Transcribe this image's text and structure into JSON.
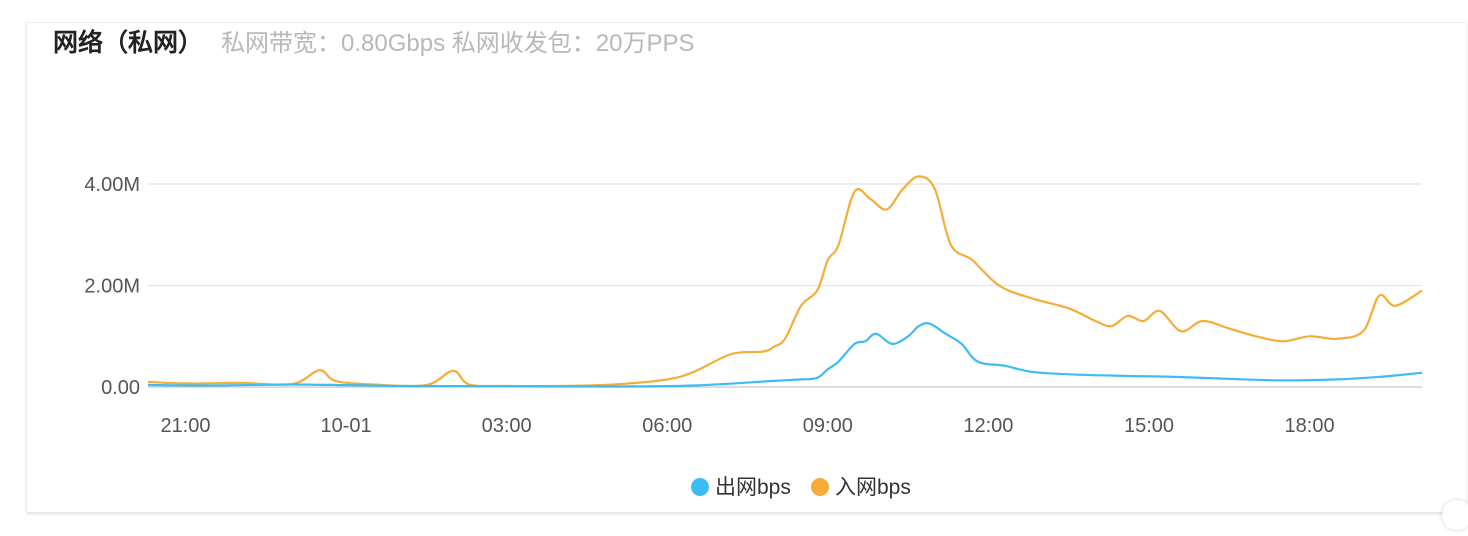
{
  "header": {
    "title": "网络（私网）",
    "subtitle": "私网带宽：0.80Gbps 私网收发包：20万PPS"
  },
  "chart_data": {
    "type": "line",
    "title": "网络（私网）",
    "x_tick_labels": [
      "21:00",
      "10-01",
      "03:00",
      "06:00",
      "09:00",
      "12:00",
      "15:00",
      "18:00"
    ],
    "x_start_hour": 20.3,
    "x_end_hour": 44.1,
    "y_tick_labels": [
      "0.00",
      "2.00M",
      "4.00M"
    ],
    "y_ticks": [
      0,
      2000000,
      4000000
    ],
    "ylim": [
      0,
      4000000
    ],
    "grid": true,
    "legend_position": "bottom-center",
    "series": [
      {
        "name": "出网bps",
        "color": "#3dbbf5",
        "x": [
          20.3,
          21.5,
          23.0,
          25.0,
          27.0,
          29.0,
          30.5,
          32.0,
          32.5,
          32.8,
          33.0,
          33.2,
          33.5,
          33.7,
          33.9,
          34.2,
          34.5,
          34.7,
          34.9,
          35.2,
          35.5,
          35.8,
          36.3,
          36.8,
          37.5,
          38.5,
          39.5,
          40.5,
          41.5,
          42.5,
          43.3,
          44.1
        ],
        "values": [
          40000,
          30000,
          50000,
          20000,
          15000,
          10000,
          30000,
          120000,
          150000,
          180000,
          350000,
          500000,
          850000,
          900000,
          1050000,
          850000,
          1000000,
          1200000,
          1250000,
          1050000,
          850000,
          500000,
          420000,
          300000,
          250000,
          220000,
          200000,
          160000,
          130000,
          150000,
          200000,
          280000
        ]
      },
      {
        "name": "入网bps",
        "color": "#f5ad37",
        "x": [
          20.3,
          21.0,
          22.0,
          23.0,
          23.5,
          23.8,
          24.5,
          25.5,
          26.0,
          26.3,
          27.0,
          28.0,
          29.0,
          30.0,
          30.5,
          31.2,
          31.8,
          32.0,
          32.2,
          32.5,
          32.8,
          33.0,
          33.2,
          33.5,
          33.8,
          34.1,
          34.4,
          34.7,
          35.0,
          35.3,
          35.7,
          36.2,
          36.8,
          37.5,
          38.0,
          38.3,
          38.6,
          38.9,
          39.2,
          39.6,
          40.0,
          40.5,
          41.0,
          41.5,
          42.0,
          42.5,
          43.0,
          43.3,
          43.6,
          44.1
        ],
        "values": [
          100000,
          70000,
          80000,
          60000,
          330000,
          120000,
          50000,
          40000,
          320000,
          50000,
          20000,
          20000,
          50000,
          150000,
          300000,
          650000,
          700000,
          800000,
          950000,
          1600000,
          1900000,
          2500000,
          2800000,
          3850000,
          3700000,
          3500000,
          3900000,
          4150000,
          3900000,
          2800000,
          2500000,
          2000000,
          1750000,
          1550000,
          1300000,
          1200000,
          1400000,
          1300000,
          1500000,
          1100000,
          1300000,
          1150000,
          1000000,
          900000,
          1000000,
          950000,
          1100000,
          1800000,
          1600000,
          1900000
        ]
      }
    ]
  }
}
